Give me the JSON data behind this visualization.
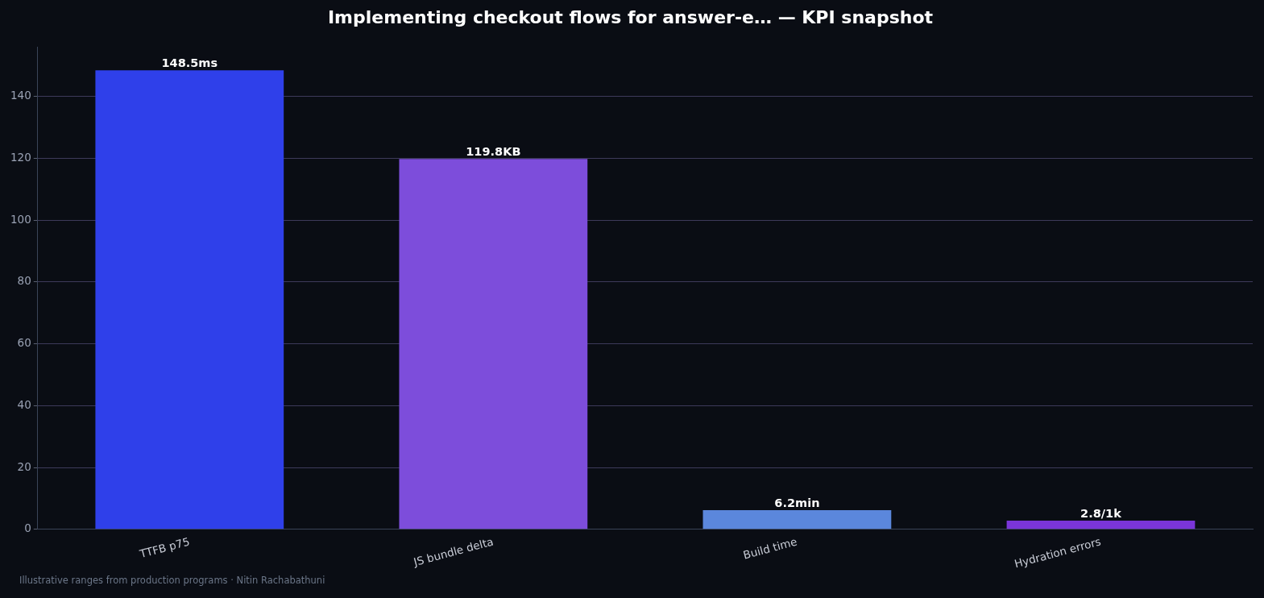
{
  "chart_data": {
    "type": "bar",
    "title": "Implementing checkout flows for answer-e… — KPI snapshot",
    "categories": [
      "TTFB p75",
      "JS bundle delta",
      "Build time",
      "Hydration errors"
    ],
    "values": [
      148.5,
      119.8,
      6.2,
      2.8
    ],
    "colors": [
      "#2f40ea",
      "#7d4ddb",
      "#5b87dc",
      "#7a35d8"
    ],
    "value_labels": [
      "148.5ms",
      "119.8KB",
      "6.2min",
      "2.8/1k"
    ],
    "ylim": [
      0,
      156
    ],
    "yticks": [
      0,
      20,
      40,
      60,
      80,
      100,
      120,
      140
    ],
    "grid": "y",
    "legend": false,
    "annotations": [
      "Illustrative ranges from production programs · Nitin Rachabathuni"
    ]
  }
}
